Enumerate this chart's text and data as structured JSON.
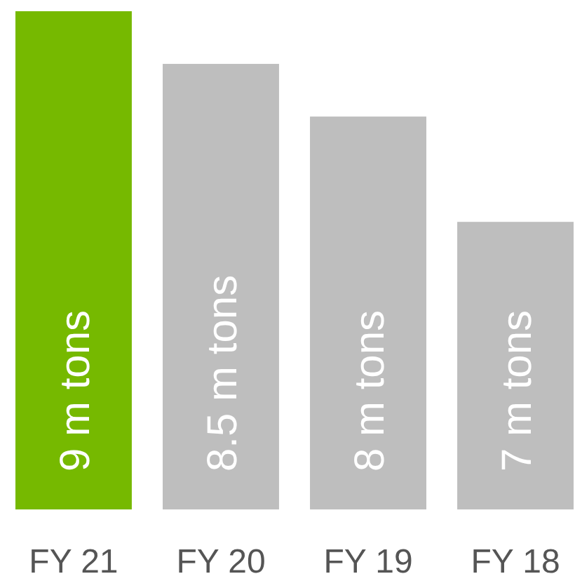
{
  "chart_data": {
    "type": "bar",
    "categories": [
      "FY 21",
      "FY 20",
      "FY 19",
      "FY 18"
    ],
    "values": [
      9,
      8.5,
      8,
      7
    ],
    "colors": [
      "#76b900",
      "#bebebe",
      "#bebebe",
      "#bebebe"
    ],
    "value_labels": [
      "9 m tons",
      "8.5 m tons",
      "8 m tons",
      "7 m tons"
    ],
    "ylim": [
      4.27,
      9
    ],
    "tick_labels": "x"
  }
}
